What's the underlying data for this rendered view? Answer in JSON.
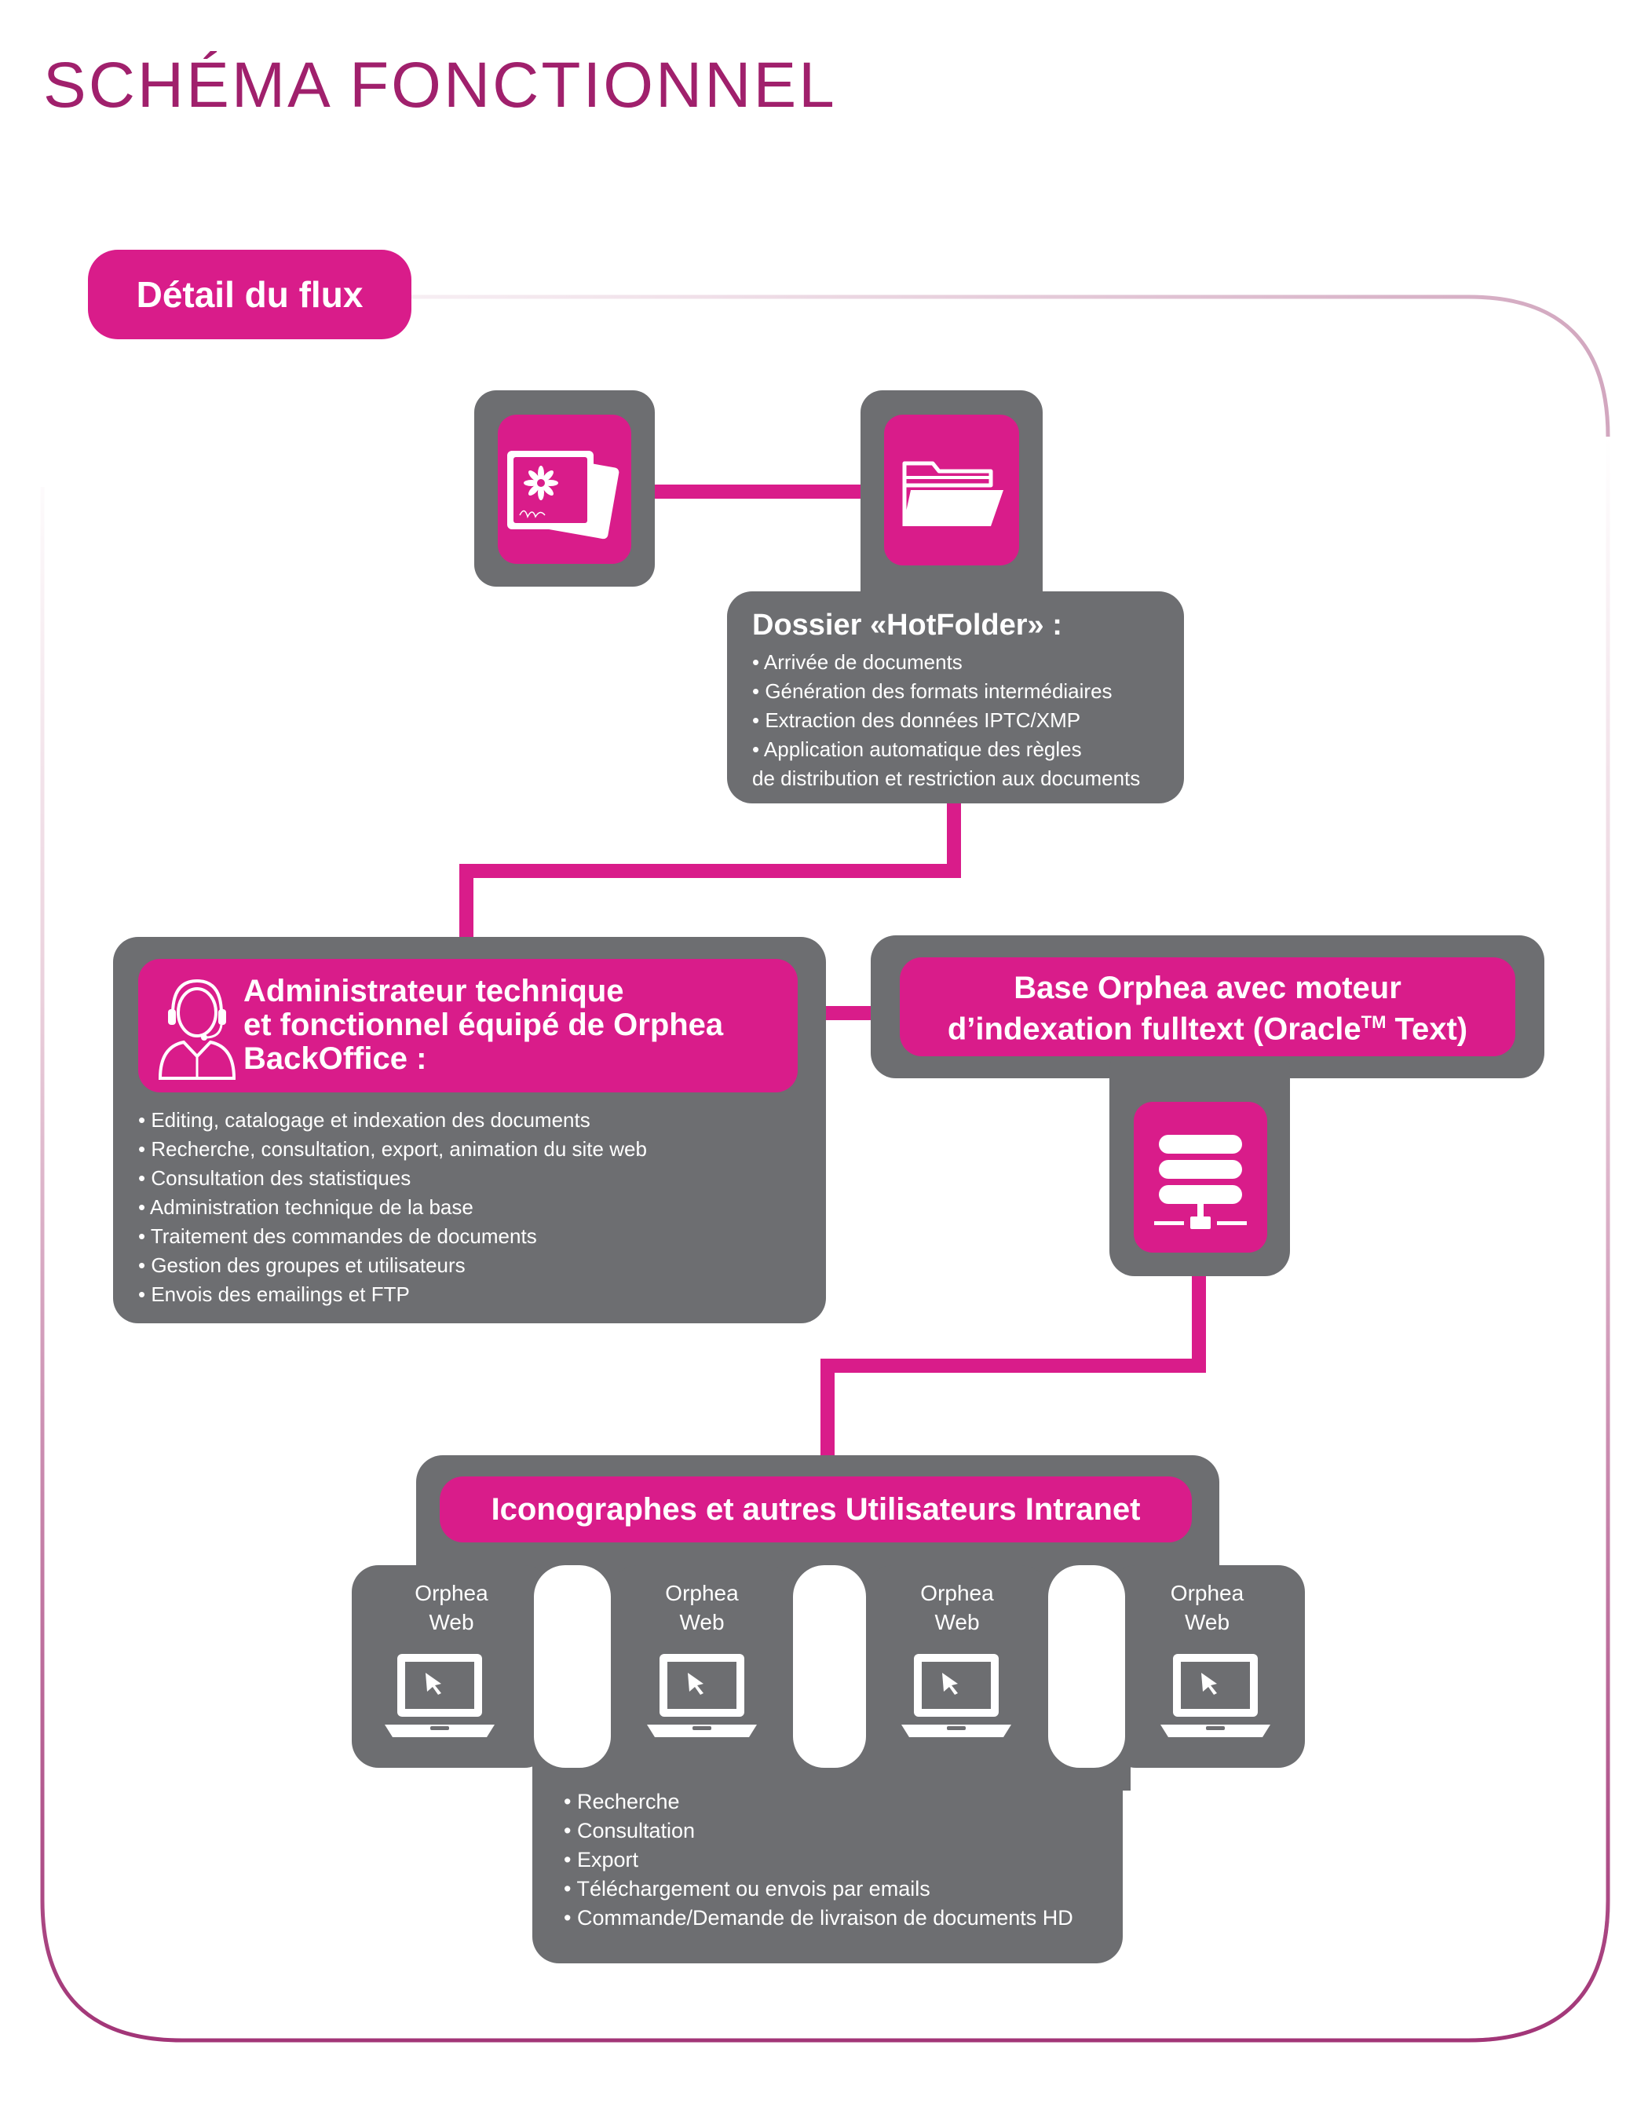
{
  "page_title": "SCHÉMA FONCTIONNEL",
  "section_tab": "Détail du flux",
  "colors": {
    "accent": "#d91c8a",
    "panel": "#6d6e71",
    "title": "#a0206c"
  },
  "hotfolder": {
    "title": "Dossier «HotFolder» :",
    "items": [
      "Arrivée de documents",
      "Génération des formats intermédiaires",
      "Extraction des données IPTC/XMP",
      "Application automatique des règles",
      "de distribution et restriction aux documents"
    ]
  },
  "admin": {
    "title_lines": [
      "Administrateur technique",
      "et fonctionnel équipé de Orphea",
      "BackOffice :"
    ],
    "items": [
      "Editing, catalogage et indexation des documents",
      "Recherche, consultation, export, animation du site web",
      "Consultation des statistiques",
      "Administration technique de la base",
      "Traitement des commandes de documents",
      "Gestion des groupes et utilisateurs",
      "Envois des emailings et FTP"
    ]
  },
  "database": {
    "title_line1": "Base Orphea avec moteur",
    "title_line2_pre": "d’indexation fulltext (Oracle",
    "title_tm": "TM",
    "title_line2_post": " Text)"
  },
  "users": {
    "title": "Iconographes et autres Utilisateurs Intranet",
    "clients": [
      {
        "line1": "Orphea",
        "line2": "Web"
      },
      {
        "line1": "Orphea",
        "line2": "Web"
      },
      {
        "line1": "Orphea",
        "line2": "Web"
      },
      {
        "line1": "Orphea",
        "line2": "Web"
      }
    ],
    "items": [
      "Recherche",
      "Consultation",
      "Export",
      "Téléchargement ou envois par emails",
      "Commande/Demande de livraison de documents HD"
    ]
  }
}
